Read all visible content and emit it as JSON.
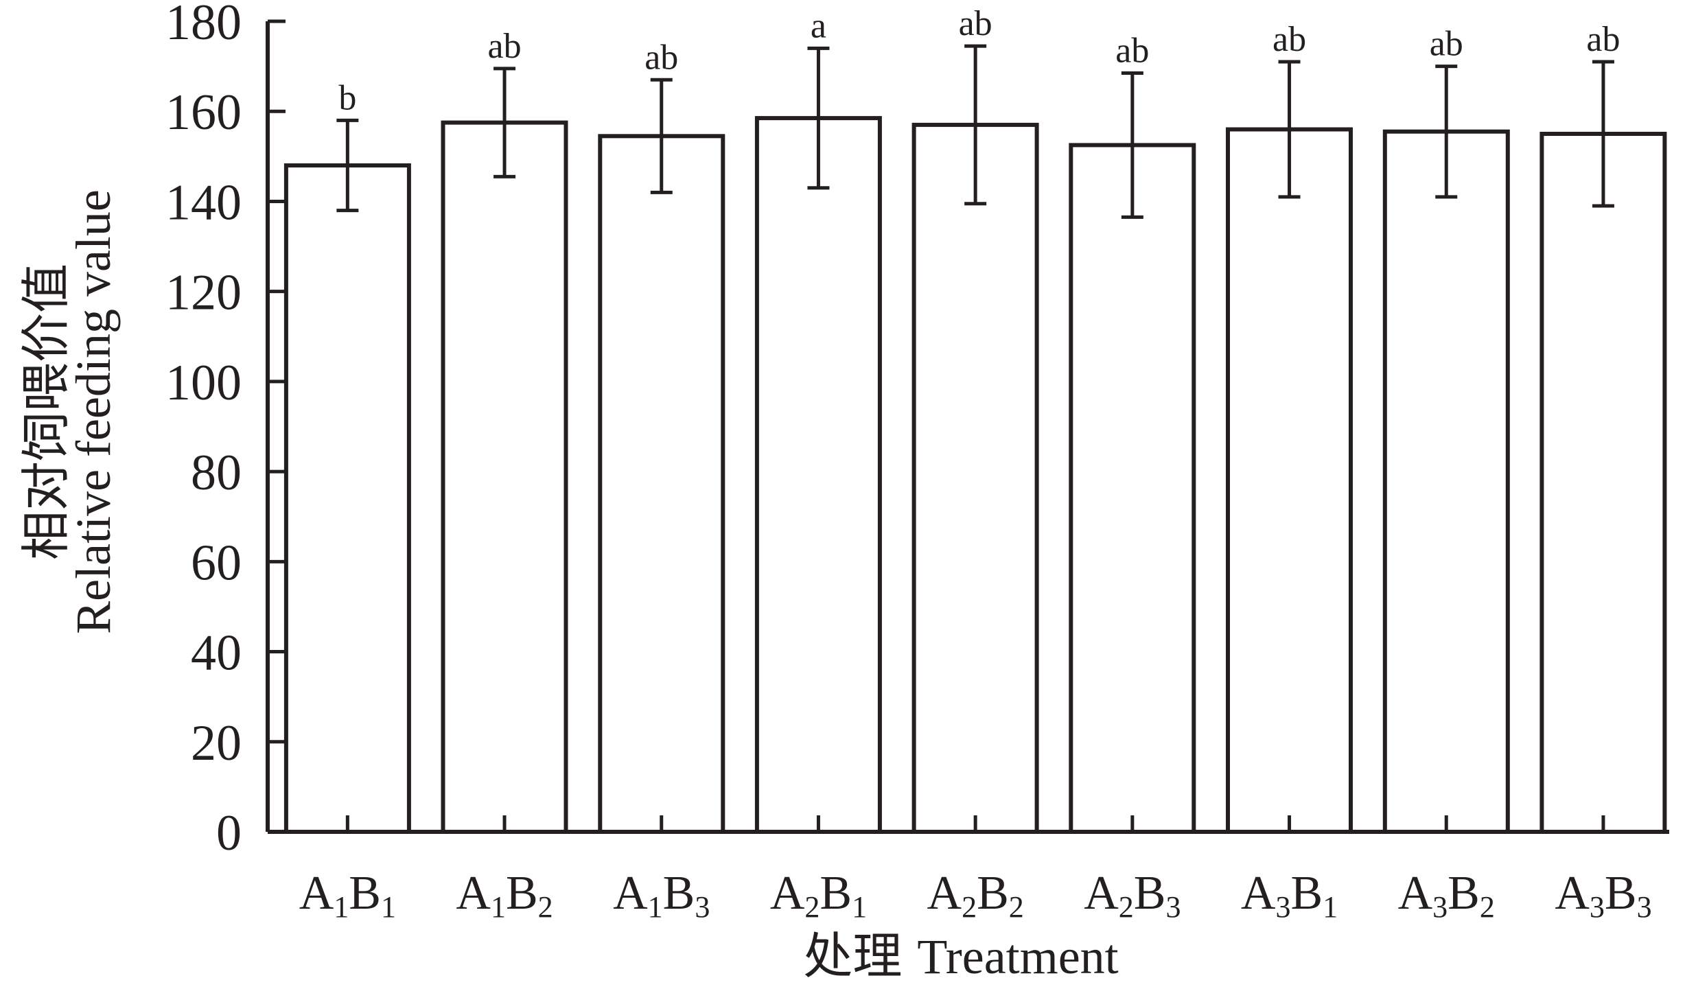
{
  "chart_data": {
    "type": "bar",
    "ylabel_cn": "相对饲喂价值",
    "ylabel_en": "Relative feeding value",
    "xlabel_cn": "处理",
    "xlabel_en": "Treatment",
    "ylim": [
      0,
      180
    ],
    "yticks": [
      0,
      20,
      40,
      60,
      80,
      100,
      120,
      140,
      160,
      180
    ],
    "grid": false,
    "categories": [
      {
        "a": "A",
        "a_sub": "1",
        "b": "B",
        "b_sub": "1"
      },
      {
        "a": "A",
        "a_sub": "1",
        "b": "B",
        "b_sub": "2"
      },
      {
        "a": "A",
        "a_sub": "1",
        "b": "B",
        "b_sub": "3"
      },
      {
        "a": "A",
        "a_sub": "2",
        "b": "B",
        "b_sub": "1"
      },
      {
        "a": "A",
        "a_sub": "2",
        "b": "B",
        "b_sub": "2"
      },
      {
        "a": "A",
        "a_sub": "2",
        "b": "B",
        "b_sub": "3"
      },
      {
        "a": "A",
        "a_sub": "3",
        "b": "B",
        "b_sub": "1"
      },
      {
        "a": "A",
        "a_sub": "3",
        "b": "B",
        "b_sub": "2"
      },
      {
        "a": "A",
        "a_sub": "3",
        "b": "B",
        "b_sub": "3"
      }
    ],
    "values": [
      148,
      157.5,
      154.5,
      158.5,
      157,
      152.5,
      156,
      155.5,
      155
    ],
    "error": [
      10,
      12,
      12.5,
      15.5,
      17.5,
      16,
      15,
      14.5,
      16
    ],
    "significance": [
      "b",
      "ab",
      "ab",
      "a",
      "ab",
      "ab",
      "ab",
      "ab",
      "ab"
    ],
    "colors": {
      "bar_fill": "#ffffff",
      "stroke": "#231f20",
      "text": "#231f20"
    }
  }
}
